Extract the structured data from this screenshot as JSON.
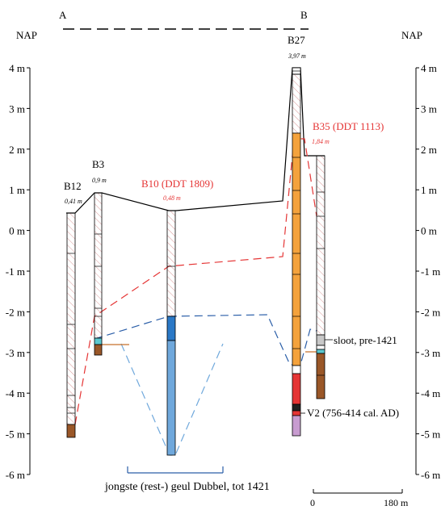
{
  "section": {
    "left_end": "A",
    "right_end": "B"
  },
  "axis_left": {
    "title": "NAP",
    "ticks": [
      "4 m",
      "3 m",
      "2 m",
      "1 m",
      "0 m",
      "-1 m",
      "-2 m",
      "-3 m",
      "-4 m",
      "-5 m",
      "-6 m"
    ]
  },
  "axis_right": {
    "title": "NAP",
    "ticks": [
      "4 m",
      "3 m",
      "2 m",
      "1 m",
      "0 m",
      "-1 m",
      "-2 m",
      "-3 m",
      "-4 m",
      "-5 m",
      "-6 m"
    ]
  },
  "boreholes": [
    {
      "name": "B12",
      "elevation": "0,41 m",
      "color": "#000000"
    },
    {
      "name": "B3",
      "elevation": "0,9 m",
      "color": "#000000"
    },
    {
      "name": "B10 (DDT 1809)",
      "elevation": "0,48 m",
      "color": "#e53535"
    },
    {
      "name": "B27",
      "elevation": "3,97 m",
      "color": "#000000"
    },
    {
      "name": "B35 (DDT 1113)",
      "elevation": "1,84 m",
      "color": "#e53535"
    }
  ],
  "annotations": {
    "channel": "jongste (rest-) geul Dubbel, tot 1421",
    "ditch": "sloot, pre-1421",
    "v2": "V2 (756-414 cal. AD)"
  },
  "scale_bar": {
    "start": "0",
    "end": "180 m"
  },
  "colors": {
    "orange": "#f4a23c",
    "blue_dark": "#2a78c6",
    "blue_light": "#6fa8dc",
    "brown": "#9a5728",
    "teal": "#5cc8cf",
    "red_layer": "#e53535",
    "purple": "#c89cd0",
    "gray": "#c8c8c8",
    "dashed_red": "#e53535",
    "dashed_blue": "#2a5ea8"
  }
}
